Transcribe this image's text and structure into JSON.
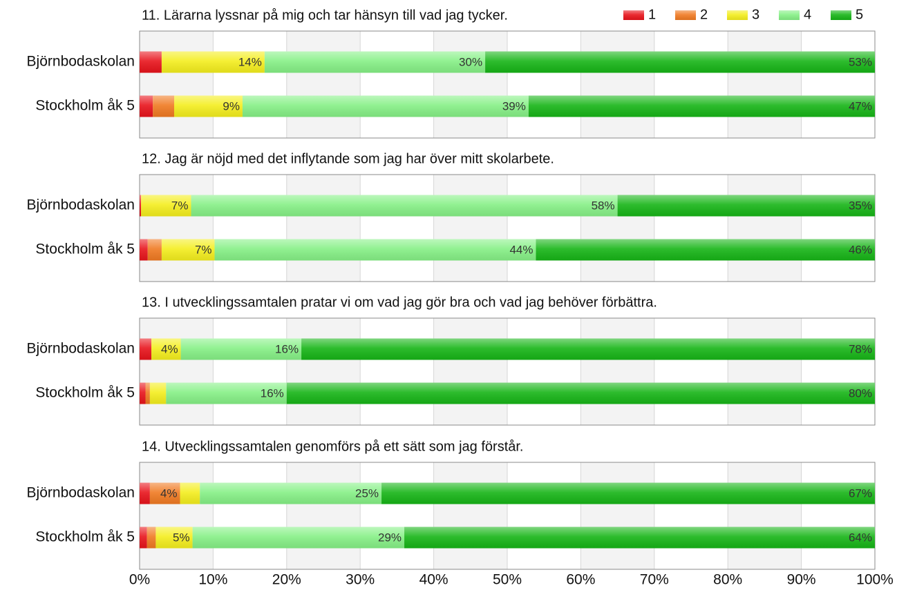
{
  "chart_data": {
    "type": "bar",
    "orientation": "horizontal",
    "stacked": true,
    "legend": "top-right",
    "grid": true,
    "xlim": [
      0,
      100
    ],
    "xticks": [
      {
        "value": 0,
        "label": "0%"
      },
      {
        "value": 10,
        "label": "10%"
      },
      {
        "value": 20,
        "label": "20%"
      },
      {
        "value": 30,
        "label": "30%"
      },
      {
        "value": 40,
        "label": "40%"
      },
      {
        "value": 50,
        "label": "50%"
      },
      {
        "value": 60,
        "label": "60%"
      },
      {
        "value": 70,
        "label": "70%"
      },
      {
        "value": 80,
        "label": "80%"
      },
      {
        "value": 90,
        "label": "90%"
      },
      {
        "value": 100,
        "label": "100%"
      }
    ],
    "series": [
      {
        "name": "1",
        "color": "#e8141c"
      },
      {
        "name": "2",
        "color": "#f07a22"
      },
      {
        "name": "3",
        "color": "#f4ee1e"
      },
      {
        "name": "4",
        "color": "#86f086"
      },
      {
        "name": "5",
        "color": "#17b517"
      }
    ],
    "panels": [
      {
        "title": "11. Lärarna lyssnar på mig och tar hänsyn till vad jag tycker.",
        "categories": [
          "Björnbodaskolan",
          "Stockholm åk 5"
        ],
        "values": [
          [
            3,
            0,
            14,
            30,
            53
          ],
          [
            1.8,
            2.9,
            9.3,
            38.9,
            47.1
          ]
        ],
        "value_labels": [
          [
            null,
            null,
            "14%",
            "30%",
            "53%"
          ],
          [
            null,
            null,
            "9%",
            "39%",
            "47%"
          ]
        ]
      },
      {
        "title": "12. Jag är nöjd med det inflytande som jag har över mitt skolarbete.",
        "categories": [
          "Björnbodaskolan",
          "Stockholm åk 5"
        ],
        "values": [
          [
            0.2,
            0,
            6.8,
            58,
            35
          ],
          [
            1.1,
            1.9,
            7.2,
            43.7,
            46.1
          ]
        ],
        "value_labels": [
          [
            null,
            null,
            "7%",
            "58%",
            "35%"
          ],
          [
            null,
            null,
            "7%",
            "44%",
            "46%"
          ]
        ]
      },
      {
        "title": "13. I utvecklingssamtalen pratar vi om vad jag gör bra och vad jag behöver förbättra.",
        "categories": [
          "Björnbodaskolan",
          "Stockholm åk 5"
        ],
        "values": [
          [
            1.6,
            0,
            4,
            16.4,
            78
          ],
          [
            0.8,
            0.6,
            2.2,
            16.4,
            80
          ]
        ],
        "value_labels": [
          [
            null,
            null,
            "4%",
            "16%",
            "78%"
          ],
          [
            null,
            null,
            null,
            "16%",
            "80%"
          ]
        ]
      },
      {
        "title": "14. Utvecklingssamtalen genomförs på ett sätt som jag förstår.",
        "categories": [
          "Björnbodaskolan",
          "Stockholm åk 5"
        ],
        "values": [
          [
            1.4,
            4.1,
            2.7,
            24.7,
            67.1
          ],
          [
            1,
            1.2,
            5,
            28.8,
            64
          ]
        ],
        "value_labels": [
          [
            null,
            "4%",
            null,
            "25%",
            "67%"
          ],
          [
            null,
            null,
            "5%",
            "29%",
            "64%"
          ]
        ]
      }
    ]
  }
}
